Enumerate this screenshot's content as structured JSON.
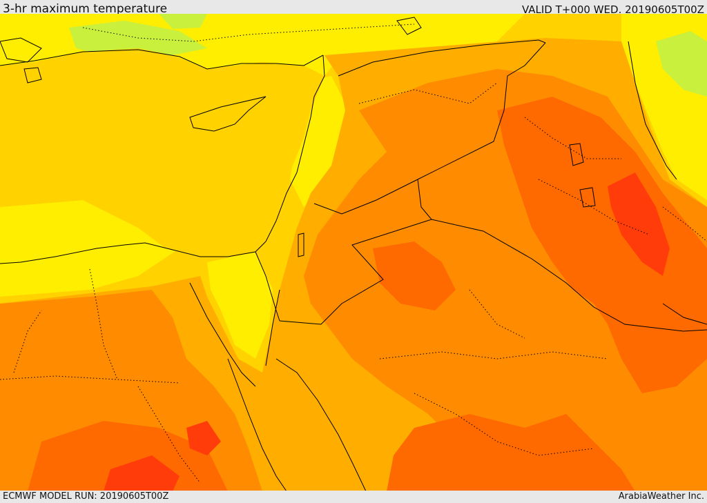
{
  "header": {
    "title": "3-hr maximum temperature",
    "valid": "VALID T+000 WED. 20190605T00Z"
  },
  "footer": {
    "model_run": "ECMWF MODEL RUN: 20190605T00Z",
    "credit": "ArabiaWeather Inc."
  },
  "map": {
    "region": "Eastern Mediterranean & Middle East",
    "fill_levels": [
      "light-green",
      "yellow",
      "gold",
      "orange",
      "dark-orange",
      "red-orange",
      "red"
    ],
    "colors": {
      "light_green": "#c8f03c",
      "yellow": "#ffee00",
      "gold": "#ffd200",
      "orange": "#ffae00",
      "dark_orange": "#ff8c00",
      "red_orange": "#ff6a00",
      "red": "#ff3c0a"
    }
  }
}
